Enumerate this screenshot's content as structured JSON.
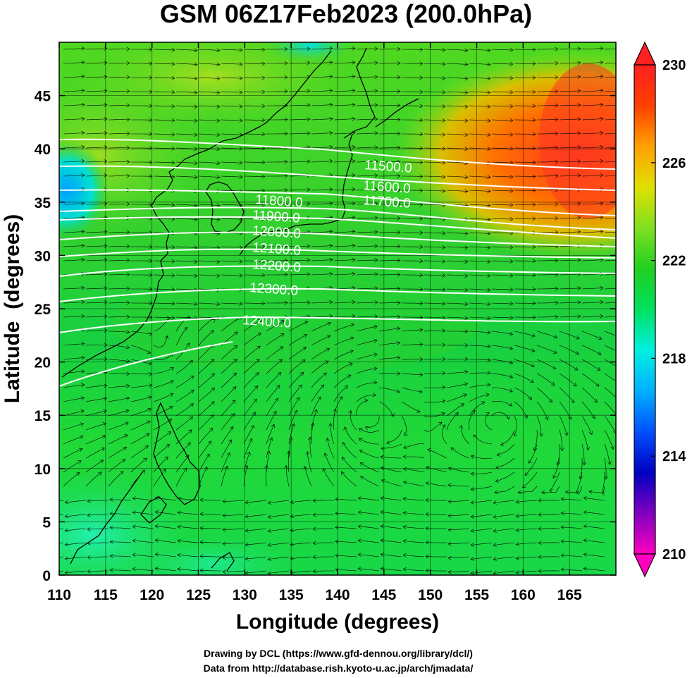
{
  "title": "GSM 06Z17Feb2023 (200.0hPa)",
  "map": {
    "lon_range": [
      110,
      170
    ],
    "lat_range": [
      0,
      50
    ],
    "x_ticks": [
      110,
      115,
      120,
      125,
      130,
      135,
      140,
      145,
      150,
      155,
      160,
      165
    ],
    "y_ticks": [
      0,
      5,
      10,
      15,
      20,
      25,
      30,
      35,
      40,
      45
    ],
    "xlabel": "Longitude (degrees)",
    "ylabel": "Latitude  (degrees)",
    "grid": true
  },
  "colorbar": {
    "min": 210,
    "max": 230,
    "tick_labels": [
      "230",
      "226",
      "222",
      "218",
      "214",
      "210"
    ],
    "colors": [
      "#ff00c0",
      "#8000c0",
      "#0000c0",
      "#0050ff",
      "#00b0ff",
      "#00f0e0",
      "#00e060",
      "#20d020",
      "#80e020",
      "#e0e000",
      "#ffa000",
      "#ff4000",
      "#ff2020"
    ]
  },
  "contours": [
    {
      "label": "11500.0"
    },
    {
      "label": "11600.0"
    },
    {
      "label": "11700.0"
    },
    {
      "label": "11800.0"
    },
    {
      "label": "11900.0"
    },
    {
      "label": "12000.0"
    },
    {
      "label": "12100.0"
    },
    {
      "label": "12200.0"
    },
    {
      "label": "12300.0"
    },
    {
      "label": "12400.0"
    }
  ],
  "credits": {
    "line1": "Drawing by DCL (https://www.gfd-dennou.org/library/dcl/)",
    "line2": "Data from http://database.rish.kyoto-u.ac.jp/arch/jmadata/"
  }
}
